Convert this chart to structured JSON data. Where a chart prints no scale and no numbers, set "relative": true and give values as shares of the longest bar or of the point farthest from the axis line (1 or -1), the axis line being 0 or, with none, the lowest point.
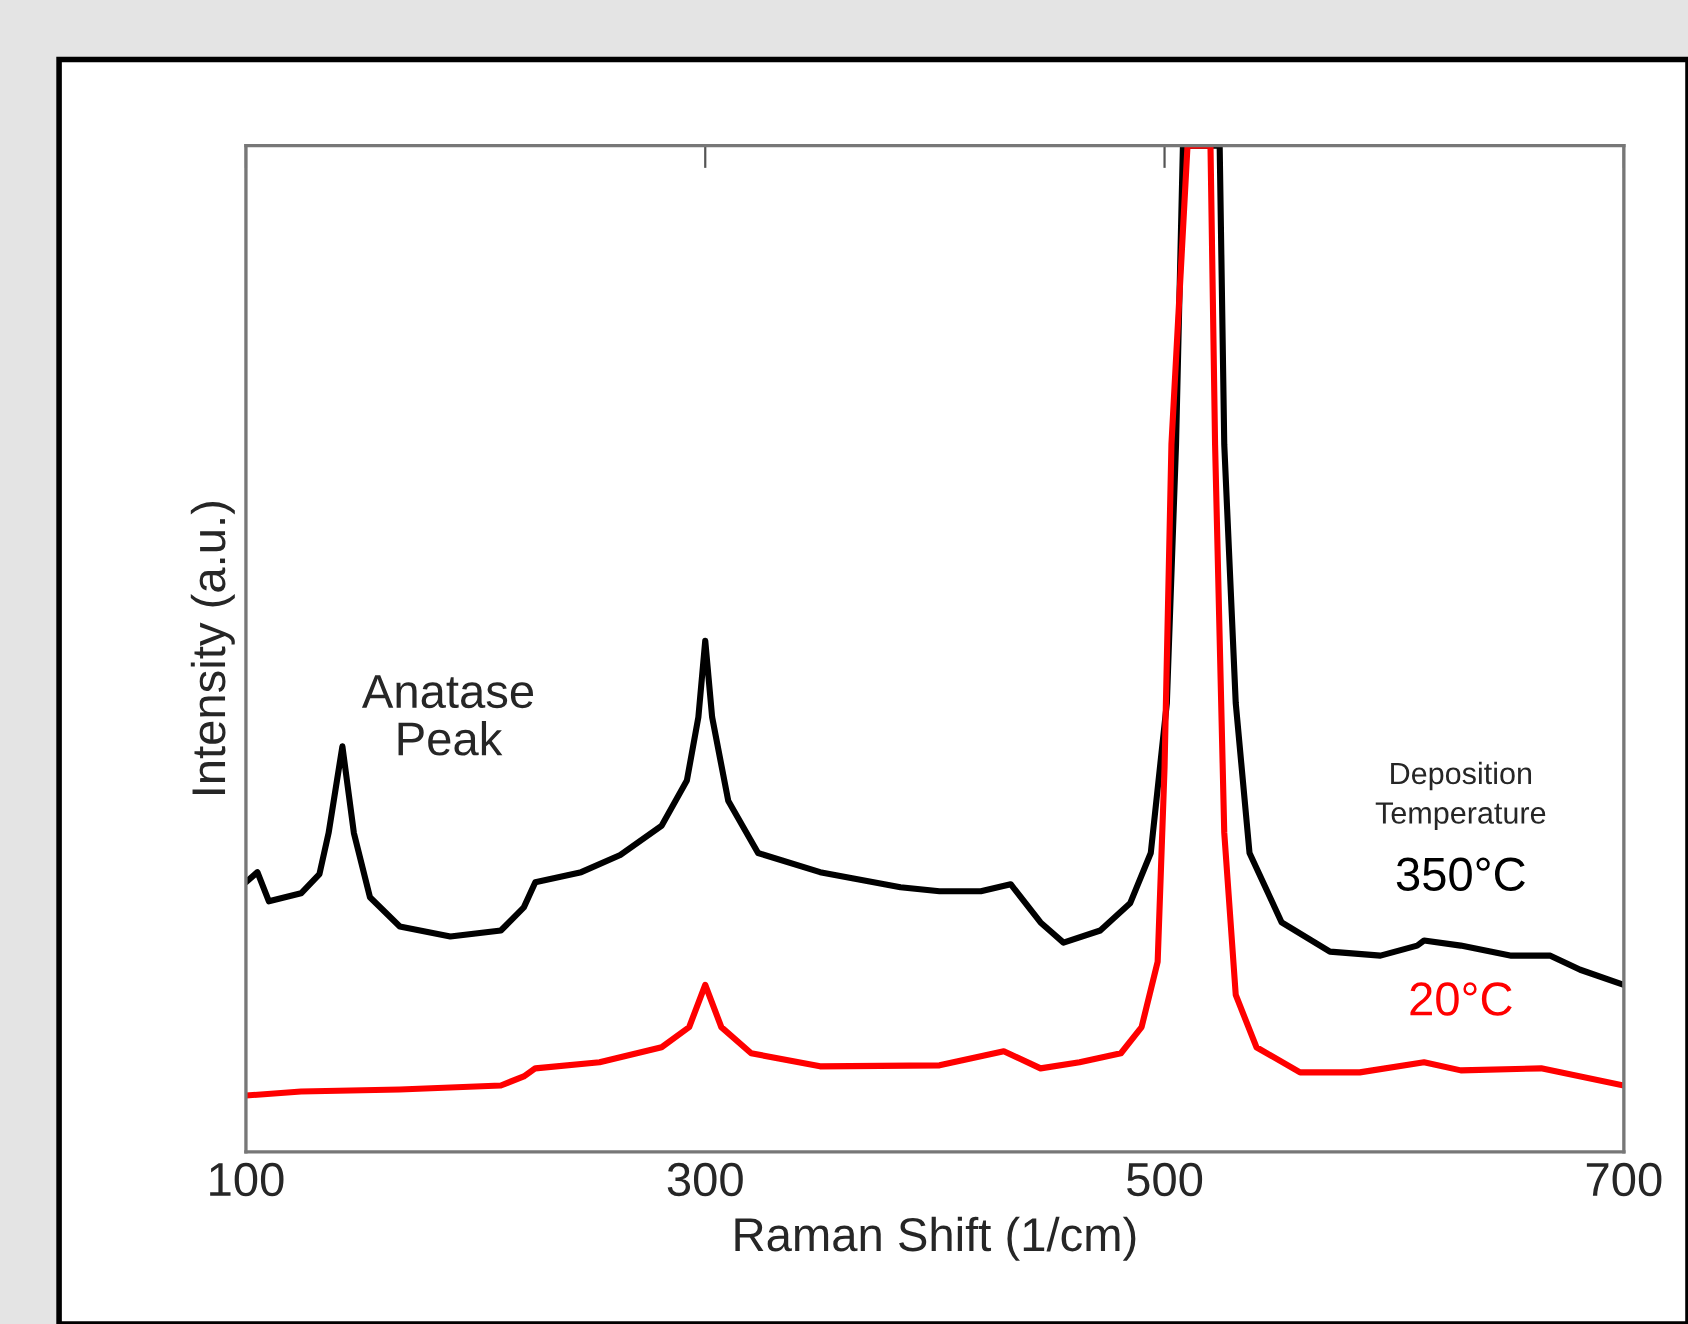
{
  "chart_data": {
    "type": "line",
    "relative": true,
    "xlabel": "Raman Shift (1/cm)",
    "ylabel": "Intensity (a.u.)",
    "xlim": [
      100,
      700
    ],
    "xticks": [
      100,
      300,
      500,
      700
    ],
    "legend_title": "Deposition\nTemperature",
    "line_style": "solid",
    "grid": false,
    "annotations": [
      "Anatase\nPeak"
    ],
    "series": [
      {
        "name": "350°C",
        "color": "#000000",
        "x": [
          100,
          105,
          110,
          124,
          132,
          136,
          142,
          147,
          154,
          167,
          189,
          211,
          221,
          226,
          246,
          263,
          281,
          292,
          297,
          300,
          303,
          310,
          323,
          350,
          385,
          402,
          420,
          433,
          446,
          456,
          472,
          485,
          494,
          501,
          505,
          508,
          524,
          526,
          531,
          537,
          551,
          572,
          594,
          610,
          613,
          629,
          651,
          668,
          681,
          700
        ],
        "values": [
          0.268,
          0.278,
          0.249,
          0.257,
          0.276,
          0.317,
          0.403,
          0.317,
          0.253,
          0.224,
          0.214,
          0.22,
          0.243,
          0.268,
          0.278,
          0.295,
          0.324,
          0.369,
          0.432,
          0.508,
          0.432,
          0.349,
          0.297,
          0.278,
          0.263,
          0.259,
          0.259,
          0.266,
          0.228,
          0.208,
          0.22,
          0.247,
          0.297,
          0.446,
          0.703,
          1.0,
          1.0,
          0.703,
          0.446,
          0.297,
          0.228,
          0.199,
          0.195,
          0.205,
          0.21,
          0.205,
          0.195,
          0.195,
          0.181,
          0.166
        ]
      },
      {
        "name": "20°C",
        "color": "#ff0000",
        "x": [
          100,
          124,
          167,
          211,
          221,
          226,
          254,
          281,
          293,
          300,
          307,
          320,
          350,
          402,
          430,
          446,
          463,
          481,
          490,
          497,
          500,
          503,
          510,
          520,
          522,
          526,
          531,
          540,
          559,
          585,
          613,
          629,
          664,
          700
        ],
        "values": [
          0.056,
          0.06,
          0.062,
          0.066,
          0.075,
          0.083,
          0.089,
          0.104,
          0.124,
          0.166,
          0.124,
          0.098,
          0.085,
          0.086,
          0.1,
          0.083,
          0.089,
          0.098,
          0.124,
          0.189,
          0.382,
          0.703,
          1.0,
          1.0,
          0.703,
          0.317,
          0.156,
          0.104,
          0.079,
          0.079,
          0.089,
          0.081,
          0.083,
          0.066
        ]
      }
    ]
  }
}
